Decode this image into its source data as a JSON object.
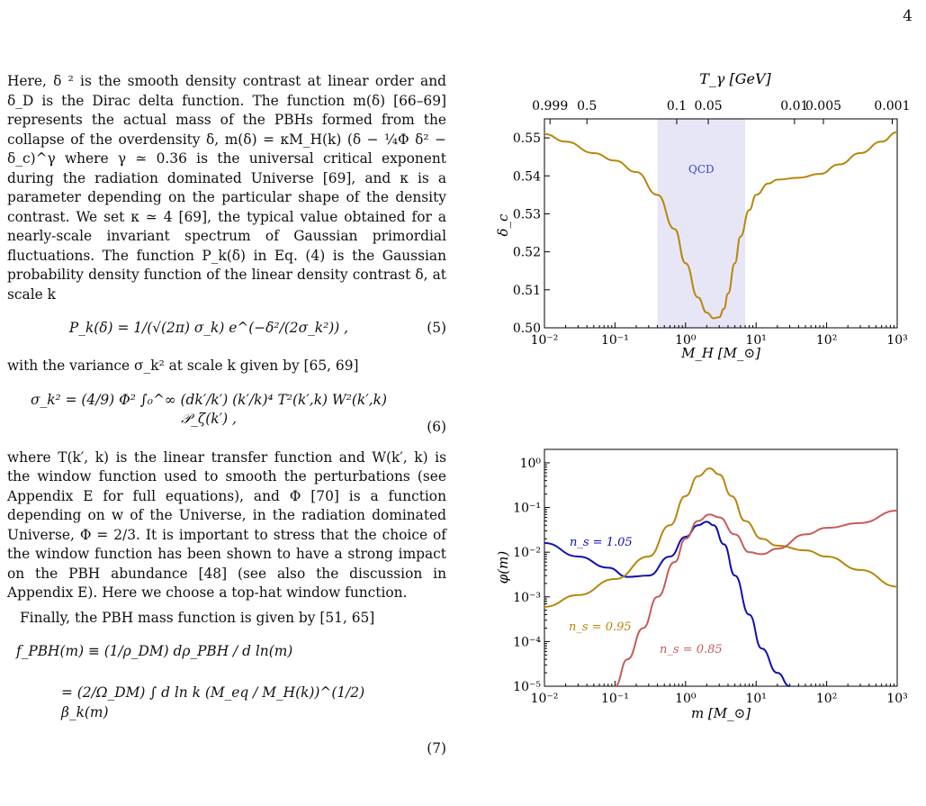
{
  "page_number": "4",
  "paragraphs": {
    "p1": "Here, δ ² is the smooth density contrast at linear order and δ_D is the Dirac delta function. The function m(δ) [66–69] represents the actual mass of the PBHs formed from the collapse of the overdensity δ, m(δ) = κM_H(k) (δ − ¼Φ δ² − δ_c)^γ where γ ≃ 0.36 is the universal critical exponent during the radiation dominated Universe [69], and κ is a parameter depending on the particular shape of the density contrast. We set κ ≃ 4 [69], the typical value obtained for a nearly-scale invariant spectrum of Gaussian primordial fluctuations. The function P_k(δ) in Eq. (4) is the Gaussian probability density function of the linear density contrast δ, at scale k",
    "eq5": "P_k(δ) = 1/(√(2π) σ_k) e^(−δ²/(2σ_k²)) ,",
    "eq5_num": "(5)",
    "p2": "with the variance σ_k² at scale k given by [65, 69]",
    "eq6": "σ_k² = (4/9) Φ² ∫₀^∞ (dk′/k′) (k′/k)⁴ T²(k′,k) W²(k′,k) 𝒫_ζ(k′) ,",
    "eq6_num": "(6)",
    "p3": "where T(k′, k) is the linear transfer function and W(k′, k) is the window function used to smooth the perturbations (see Appendix E for full equations), and Φ [70] is a function depending on w of the Universe, in the radiation dominated Universe, Φ = 2/3. It is important to stress that the choice of the window function has been shown to have a strong impact on the PBH abundance [48] (see also the discussion in Appendix E). Here we choose a top-hat window function.",
    "p4": "Finally, the PBH mass function is given by [51, 65]",
    "eq7_line1": "f_PBH(m) ≡ (1/ρ_DM) dρ_PBH / d ln(m)",
    "eq7_line2": "= (2/Ω_DM) ∫ d ln k (M_eq / M_H(k))^(1/2) β_k(m)",
    "eq7_num": "(7)"
  },
  "chart_data": [
    {
      "type": "line",
      "xlabel": "M_H [M_⊙]",
      "ylabel": "δ_c",
      "top_axis_label": "T_γ [GeV]",
      "top_tick_labels": [
        "0.999",
        "0.5",
        "0.1",
        "0.05",
        "0.01",
        "0.005",
        "0.001"
      ],
      "x_scale": "log",
      "xlim": [
        0.01,
        1000
      ],
      "ylim": [
        0.5,
        0.555
      ],
      "x_tick_labels": [
        "10⁻²",
        "10⁻¹",
        "10⁰",
        "10¹",
        "10²",
        "10³"
      ],
      "y_tick_labels": [
        "0.50",
        "0.51",
        "0.52",
        "0.53",
        "0.54",
        "0.55"
      ],
      "shaded_region": {
        "label": "QCD",
        "x_range": [
          0.4,
          7
        ],
        "color": "#e6e6f7"
      },
      "series": [
        {
          "color": "#b8860b",
          "x": [
            0.01,
            0.02,
            0.05,
            0.1,
            0.2,
            0.4,
            0.7,
            1.0,
            1.5,
            2.0,
            2.5,
            3.0,
            3.5,
            4.0,
            5.0,
            6.0,
            8.0,
            10,
            15,
            20,
            40,
            80,
            150,
            300,
            600,
            1000
          ],
          "y": [
            0.551,
            0.549,
            0.546,
            0.544,
            0.541,
            0.535,
            0.526,
            0.517,
            0.508,
            0.504,
            0.5025,
            0.5028,
            0.505,
            0.509,
            0.517,
            0.524,
            0.531,
            0.535,
            0.538,
            0.539,
            0.5395,
            0.5405,
            0.543,
            0.546,
            0.549,
            0.5515
          ]
        }
      ]
    },
    {
      "type": "line",
      "xlabel": "m [M_⊙]",
      "ylabel": "φ(m)",
      "x_scale": "log",
      "y_scale": "log",
      "xlim": [
        0.01,
        1000
      ],
      "ylim": [
        1e-05,
        2
      ],
      "x_tick_labels": [
        "10⁻²",
        "10⁻¹",
        "10⁰",
        "10¹",
        "10²",
        "10³"
      ],
      "y_tick_labels": [
        "10⁻⁵",
        "10⁻⁴",
        "10⁻³",
        "10⁻²",
        "10⁻¹",
        "10⁰"
      ],
      "series": [
        {
          "name": "n_s = 1.05",
          "color": "#1010b0",
          "x": [
            0.01,
            0.03,
            0.08,
            0.15,
            0.3,
            0.6,
            1.0,
            1.5,
            2.0,
            2.5,
            3.5,
            5,
            8,
            12,
            20,
            30
          ],
          "y": [
            0.016,
            0.008,
            0.0045,
            0.0028,
            0.003,
            0.008,
            0.022,
            0.04,
            0.048,
            0.04,
            0.015,
            0.003,
            0.0004,
            7e-05,
            2e-05,
            1e-05
          ]
        },
        {
          "name": "n_s = 0.95",
          "color": "#b8860b",
          "x": [
            0.01,
            0.03,
            0.1,
            0.3,
            0.6,
            1.0,
            1.5,
            2.2,
            3.0,
            4.5,
            7,
            12,
            20,
            50,
            100,
            300,
            1000
          ],
          "y": [
            0.0006,
            0.0011,
            0.0025,
            0.008,
            0.04,
            0.18,
            0.5,
            0.75,
            0.55,
            0.18,
            0.05,
            0.02,
            0.014,
            0.011,
            0.008,
            0.004,
            0.0017
          ]
        },
        {
          "name": "n_s = 0.85",
          "color": "#c85a5a",
          "x": [
            0.1,
            0.15,
            0.25,
            0.4,
            0.7,
            1.0,
            1.5,
            2.2,
            3.0,
            5,
            8,
            12,
            20,
            50,
            100,
            300,
            1000
          ],
          "y": [
            1e-05,
            4e-05,
            0.0002,
            0.001,
            0.006,
            0.02,
            0.05,
            0.07,
            0.06,
            0.025,
            0.01,
            0.009,
            0.012,
            0.025,
            0.035,
            0.045,
            0.085
          ]
        }
      ]
    }
  ]
}
